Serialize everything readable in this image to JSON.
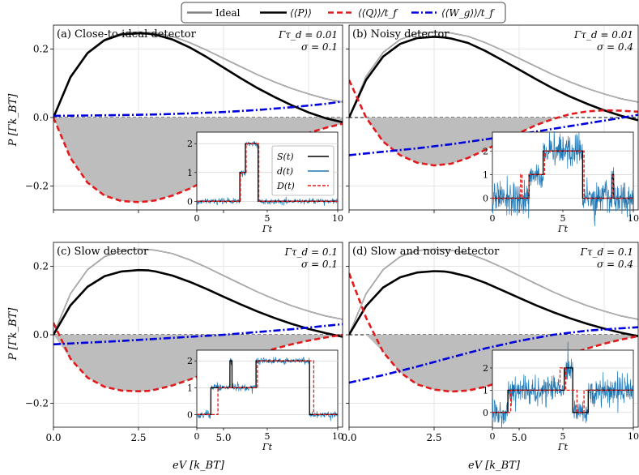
{
  "legend": {
    "items": [
      {
        "label": "Ideal",
        "color": "#808080",
        "style": "solid"
      },
      {
        "label": "⟨⟨P⟩⟩",
        "color": "#000000",
        "style": "solid"
      },
      {
        "label": "⟨⟨Q⟩⟩/t_f",
        "color": "#e31a1c",
        "style": "dashed"
      },
      {
        "label": "⟨⟨W_g⟩⟩/t_f",
        "color": "#0000dd",
        "style": "dashdot"
      }
    ]
  },
  "axes": {
    "ylabel": "P [Γk_BT]",
    "xlabel": "eV [k_BT]",
    "x_ticks": [
      "0.0",
      "2.5",
      "5.0"
    ],
    "y_ticks": [
      "0.2",
      "0.0",
      "−0.2"
    ],
    "inset_xlabel": "Γt",
    "inset_x_ticks": [
      "0",
      "5",
      "10"
    ],
    "inset_y_ticks": [
      "0",
      "1",
      "2"
    ],
    "inset_legend": [
      "S(t)",
      "d(t)",
      "D(t)"
    ]
  },
  "panels": [
    {
      "title": "(a)  Close-to-ideal detector",
      "param1": "Γτ_d = 0.01",
      "param2": "σ = 0.1"
    },
    {
      "title": "(b)  Noisy detector",
      "param1": "Γτ_d = 0.01",
      "param2": "σ = 0.4"
    },
    {
      "title": "(c)  Slow detector",
      "param1": "Γτ_d = 0.1",
      "param2": "σ = 0.1"
    },
    {
      "title": "(d)  Slow and noisy detector",
      "param1": "Γτ_d = 0.1",
      "param2": "σ = 0.4"
    }
  ],
  "chart_data": [
    {
      "type": "line",
      "title": "(a) Close-to-ideal detector",
      "xlabel": "eV [k_BT]",
      "ylabel": "P [Γk_BT]",
      "xlim": [
        0,
        8.5
      ],
      "ylim": [
        -0.27,
        0.27
      ],
      "grid": true,
      "series": [
        {
          "name": "Ideal",
          "x": [
            0,
            0.5,
            1,
            1.5,
            2,
            2.5,
            2.8,
            3,
            3.5,
            4,
            4.5,
            5,
            5.5,
            6,
            6.5,
            7,
            7.5,
            8,
            8.5
          ],
          "y": [
            0,
            0.12,
            0.19,
            0.228,
            0.246,
            0.25,
            0.249,
            0.247,
            0.237,
            0.219,
            0.197,
            0.173,
            0.149,
            0.125,
            0.104,
            0.085,
            0.069,
            0.055,
            0.045
          ]
        },
        {
          "name": "⟨⟨P⟩⟩",
          "x": [
            0,
            0.5,
            1,
            1.5,
            2,
            2.5,
            2.8,
            3,
            3.5,
            4,
            4.5,
            5,
            5.5,
            6,
            6.5,
            7,
            7.5,
            8,
            8.5
          ],
          "y": [
            0,
            0.118,
            0.188,
            0.226,
            0.243,
            0.246,
            0.245,
            0.242,
            0.228,
            0.205,
            0.177,
            0.146,
            0.115,
            0.086,
            0.06,
            0.036,
            0.015,
            -0.002,
            -0.014
          ]
        },
        {
          "name": "⟨⟨Q⟩⟩/t_f",
          "x": [
            0,
            0.5,
            1,
            1.5,
            2,
            2.5,
            2.8,
            3,
            3.5,
            4,
            4.5,
            5,
            5.5,
            6,
            6.5,
            7,
            7.5,
            8,
            8.5
          ],
          "y": [
            0,
            -0.118,
            -0.19,
            -0.228,
            -0.244,
            -0.247,
            -0.245,
            -0.242,
            -0.228,
            -0.208,
            -0.183,
            -0.157,
            -0.13,
            -0.105,
            -0.082,
            -0.062,
            -0.045,
            -0.03,
            -0.018
          ]
        },
        {
          "name": "⟨⟨W_g⟩⟩/t_f",
          "x": [
            0,
            1,
            2,
            3,
            4,
            5,
            6,
            7,
            8,
            8.5
          ],
          "y": [
            0.005,
            0.006,
            0.007,
            0.009,
            0.012,
            0.016,
            0.022,
            0.03,
            0.04,
            0.047
          ]
        }
      ]
    },
    {
      "type": "line",
      "title": "(b) Noisy detector",
      "xlabel": "eV [k_BT]",
      "ylabel": "P [Γk_BT]",
      "xlim": [
        0,
        8.5
      ],
      "ylim": [
        -0.27,
        0.27
      ],
      "grid": true,
      "series": [
        {
          "name": "Ideal",
          "x": [
            0,
            0.5,
            1,
            1.5,
            2,
            2.5,
            2.8,
            3,
            3.5,
            4,
            4.5,
            5,
            5.5,
            6,
            6.5,
            7,
            7.5,
            8,
            8.5
          ],
          "y": [
            0,
            0.12,
            0.19,
            0.228,
            0.246,
            0.25,
            0.249,
            0.247,
            0.237,
            0.219,
            0.197,
            0.173,
            0.149,
            0.125,
            0.104,
            0.085,
            0.069,
            0.055,
            0.045
          ]
        },
        {
          "name": "⟨⟨P⟩⟩",
          "x": [
            0,
            0.5,
            1,
            1.5,
            2,
            2.5,
            2.8,
            3,
            3.5,
            4,
            4.5,
            5,
            5.5,
            6,
            6.5,
            7,
            7.5,
            8,
            8.5
          ],
          "y": [
            0,
            0.11,
            0.178,
            0.215,
            0.232,
            0.236,
            0.234,
            0.231,
            0.218,
            0.195,
            0.168,
            0.14,
            0.112,
            0.085,
            0.061,
            0.04,
            0.021,
            0.005,
            -0.008
          ]
        },
        {
          "name": "⟨⟨Q⟩⟩/t_f",
          "x": [
            0,
            0.5,
            1,
            1.5,
            2,
            2.5,
            3,
            3.5,
            4,
            4.5,
            5,
            5.5,
            6,
            6.5,
            7,
            7.5,
            8,
            8.5
          ],
          "y": [
            0.11,
            0.0,
            -0.07,
            -0.11,
            -0.132,
            -0.14,
            -0.135,
            -0.118,
            -0.095,
            -0.07,
            -0.045,
            -0.022,
            -0.004,
            0.01,
            0.018,
            0.021,
            0.02,
            0.017
          ]
        },
        {
          "name": "⟨⟨W_g⟩⟩/t_f",
          "x": [
            0,
            1,
            2,
            3,
            4,
            5,
            6,
            7,
            8,
            8.5
          ],
          "y": [
            -0.11,
            -0.1,
            -0.09,
            -0.078,
            -0.064,
            -0.049,
            -0.033,
            -0.017,
            -0.001,
            0.008
          ]
        }
      ]
    },
    {
      "type": "line",
      "title": "(c) Slow detector",
      "xlabel": "eV [k_BT]",
      "ylabel": "P [Γk_BT]",
      "xlim": [
        0,
        8.5
      ],
      "ylim": [
        -0.27,
        0.27
      ],
      "grid": true,
      "series": [
        {
          "name": "Ideal",
          "x": [
            0,
            0.5,
            1,
            1.5,
            2,
            2.5,
            2.8,
            3,
            3.5,
            4,
            4.5,
            5,
            5.5,
            6,
            6.5,
            7,
            7.5,
            8,
            8.5
          ],
          "y": [
            0,
            0.12,
            0.19,
            0.228,
            0.246,
            0.25,
            0.249,
            0.247,
            0.237,
            0.219,
            0.197,
            0.173,
            0.149,
            0.125,
            0.104,
            0.085,
            0.069,
            0.055,
            0.045
          ]
        },
        {
          "name": "⟨⟨P⟩⟩",
          "x": [
            0,
            0.5,
            1,
            1.5,
            2,
            2.5,
            2.8,
            3,
            3.5,
            4,
            4.5,
            5,
            5.5,
            6,
            6.5,
            7,
            7.5,
            8,
            8.5
          ],
          "y": [
            0,
            0.086,
            0.14,
            0.171,
            0.185,
            0.189,
            0.188,
            0.185,
            0.173,
            0.155,
            0.134,
            0.111,
            0.089,
            0.068,
            0.049,
            0.032,
            0.017,
            0.005,
            -0.006
          ]
        },
        {
          "name": "⟨⟨Q⟩⟩/t_f",
          "x": [
            0,
            0.5,
            1,
            1.5,
            2,
            2.5,
            2.8,
            3,
            3.5,
            4,
            4.5,
            5,
            5.5,
            6,
            6.5,
            7,
            7.5,
            8,
            8.5
          ],
          "y": [
            0.035,
            -0.07,
            -0.125,
            -0.152,
            -0.163,
            -0.165,
            -0.164,
            -0.16,
            -0.148,
            -0.131,
            -0.112,
            -0.092,
            -0.073,
            -0.056,
            -0.041,
            -0.028,
            -0.017,
            -0.008,
            0.0
          ]
        },
        {
          "name": "⟨⟨W_g⟩⟩/t_f",
          "x": [
            0,
            1,
            2,
            3,
            4,
            5,
            6,
            7,
            8,
            8.5
          ],
          "y": [
            -0.028,
            -0.023,
            -0.018,
            -0.012,
            -0.006,
            0.0,
            0.008,
            0.016,
            0.026,
            0.031
          ]
        }
      ]
    },
    {
      "type": "line",
      "title": "(d) Slow and noisy detector",
      "xlabel": "eV [k_BT]",
      "ylabel": "P [Γk_BT]",
      "xlim": [
        0,
        8.5
      ],
      "ylim": [
        -0.27,
        0.27
      ],
      "grid": true,
      "series": [
        {
          "name": "Ideal",
          "x": [
            0,
            0.5,
            1,
            1.5,
            2,
            2.5,
            2.8,
            3,
            3.5,
            4,
            4.5,
            5,
            5.5,
            6,
            6.5,
            7,
            7.5,
            8,
            8.5
          ],
          "y": [
            0,
            0.12,
            0.19,
            0.228,
            0.246,
            0.25,
            0.249,
            0.247,
            0.237,
            0.219,
            0.197,
            0.173,
            0.149,
            0.125,
            0.104,
            0.085,
            0.069,
            0.055,
            0.045
          ]
        },
        {
          "name": "⟨⟨P⟩⟩",
          "x": [
            0,
            0.5,
            1,
            1.5,
            2,
            2.5,
            2.8,
            3,
            3.5,
            4,
            4.5,
            5,
            5.5,
            6,
            6.5,
            7,
            7.5,
            8,
            8.5
          ],
          "y": [
            0,
            0.084,
            0.138,
            0.168,
            0.182,
            0.186,
            0.185,
            0.182,
            0.17,
            0.152,
            0.13,
            0.108,
            0.086,
            0.066,
            0.048,
            0.032,
            0.018,
            0.006,
            -0.004
          ]
        },
        {
          "name": "⟨⟨Q⟩⟩/t_f",
          "x": [
            0,
            0.5,
            1,
            1.5,
            2,
            2.5,
            3,
            3.5,
            4,
            4.5,
            5,
            5.5,
            6,
            6.5,
            7,
            7.5,
            8,
            8.5
          ],
          "y": [
            0.18,
            0.05,
            -0.05,
            -0.11,
            -0.145,
            -0.16,
            -0.166,
            -0.163,
            -0.152,
            -0.136,
            -0.117,
            -0.096,
            -0.076,
            -0.057,
            -0.04,
            -0.026,
            -0.014,
            -0.004
          ]
        },
        {
          "name": "⟨⟨W_g⟩⟩/t_f",
          "x": [
            0,
            1,
            2,
            3,
            4,
            5,
            6,
            7,
            8,
            8.5
          ],
          "y": [
            -0.14,
            -0.118,
            -0.093,
            -0.066,
            -0.04,
            -0.018,
            0.0,
            0.012,
            0.019,
            0.022
          ]
        }
      ]
    }
  ],
  "insets": [
    {
      "xlim": [
        0,
        10
      ],
      "ylim": [
        -0.3,
        2.4
      ],
      "S_t": [
        [
          0,
          0
        ],
        [
          3.05,
          0
        ],
        [
          3.05,
          1
        ],
        [
          3.45,
          1
        ],
        [
          3.45,
          2
        ],
        [
          4.35,
          2
        ],
        [
          4.35,
          0
        ],
        [
          10,
          0
        ]
      ],
      "D_t": [
        [
          0,
          0
        ],
        [
          3.1,
          0
        ],
        [
          3.1,
          1
        ],
        [
          3.5,
          1
        ],
        [
          3.5,
          2
        ],
        [
          4.4,
          2
        ],
        [
          4.4,
          0
        ],
        [
          10,
          0
        ]
      ],
      "d_noise": 0.05
    },
    {
      "xlim": [
        0,
        10
      ],
      "ylim": [
        -0.5,
        2.8
      ],
      "S_t": [
        [
          0,
          0
        ],
        [
          2.6,
          0
        ],
        [
          2.6,
          1
        ],
        [
          3.6,
          1
        ],
        [
          3.6,
          2
        ],
        [
          6.4,
          2
        ],
        [
          6.4,
          0
        ],
        [
          8.5,
          0
        ],
        [
          8.5,
          1
        ],
        [
          8.6,
          1
        ],
        [
          8.6,
          0
        ],
        [
          10,
          0
        ]
      ],
      "D_t": [
        [
          0,
          0
        ],
        [
          2.0,
          0
        ],
        [
          2.0,
          1
        ],
        [
          2.1,
          1
        ],
        [
          2.1,
          0
        ],
        [
          2.6,
          0
        ],
        [
          2.6,
          1
        ],
        [
          3.7,
          1
        ],
        [
          3.7,
          2
        ],
        [
          6.5,
          2
        ],
        [
          6.5,
          0
        ],
        [
          8.5,
          0
        ],
        [
          8.5,
          1
        ],
        [
          8.6,
          1
        ],
        [
          8.6,
          0
        ],
        [
          10,
          0
        ]
      ],
      "d_noise": 0.35
    },
    {
      "xlim": [
        0,
        10
      ],
      "ylim": [
        -0.5,
        2.4
      ],
      "S_t": [
        [
          0,
          0
        ],
        [
          1.0,
          0
        ],
        [
          1.0,
          1
        ],
        [
          2.35,
          1
        ],
        [
          2.35,
          2
        ],
        [
          2.5,
          2
        ],
        [
          2.5,
          1
        ],
        [
          4.2,
          1
        ],
        [
          4.2,
          2
        ],
        [
          8.0,
          2
        ],
        [
          8.0,
          0
        ],
        [
          10,
          0
        ]
      ],
      "D_t": [
        [
          0,
          0
        ],
        [
          1.5,
          0
        ],
        [
          1.5,
          1
        ],
        [
          4.3,
          1
        ],
        [
          4.3,
          2
        ],
        [
          8.3,
          2
        ],
        [
          8.3,
          0
        ],
        [
          10,
          0
        ]
      ],
      "d_noise": 0.07
    },
    {
      "xlim": [
        0,
        10
      ],
      "ylim": [
        -0.7,
        2.8
      ],
      "S_t": [
        [
          0,
          0
        ],
        [
          1.1,
          0
        ],
        [
          1.1,
          1
        ],
        [
          5.1,
          1
        ],
        [
          5.1,
          2
        ],
        [
          5.7,
          2
        ],
        [
          5.7,
          0
        ],
        [
          6.8,
          0
        ],
        [
          6.8,
          1
        ],
        [
          10,
          1
        ]
      ],
      "D_t": [
        [
          0,
          0
        ],
        [
          1.3,
          0
        ],
        [
          1.3,
          1
        ],
        [
          4.8,
          1
        ],
        [
          4.8,
          2
        ],
        [
          5.2,
          2
        ],
        [
          5.2,
          1
        ],
        [
          6.0,
          1
        ],
        [
          6.0,
          0
        ],
        [
          6.5,
          0
        ],
        [
          6.5,
          1
        ],
        [
          10,
          1
        ]
      ],
      "d_noise": 0.33
    }
  ]
}
